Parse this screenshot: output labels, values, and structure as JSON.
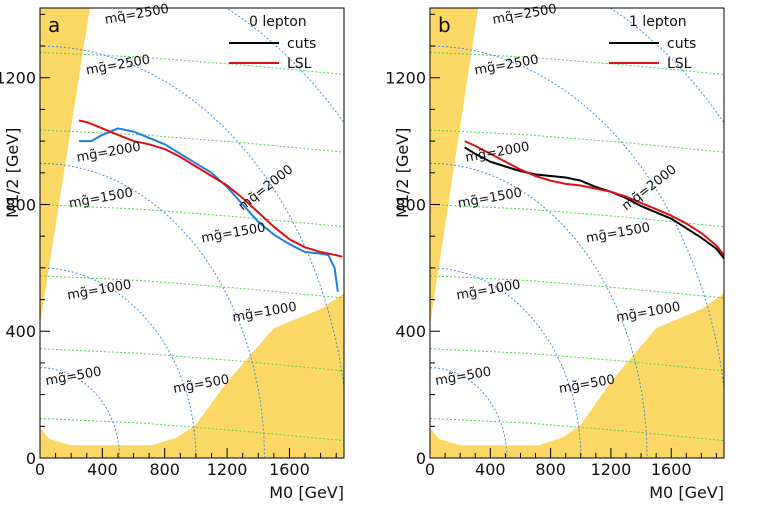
{
  "chart_data": [
    {
      "type": "line",
      "panel": "a",
      "title": "0 lepton",
      "xlabel": "M0 [GeV]",
      "ylabel": "M1/2 [GeV]",
      "xlim": [
        0,
        1950
      ],
      "ylim": [
        0,
        1420
      ],
      "xticks": [
        0,
        400,
        800,
        1200,
        1600
      ],
      "yticks": [
        0,
        400,
        800,
        1200
      ],
      "legend": [
        {
          "name": "cuts",
          "color": "#1f7fe0",
          "legend_color": "#000000"
        },
        {
          "name": "LSL",
          "color": "#e01010",
          "legend_color": "#e01010"
        }
      ],
      "series": [
        {
          "name": "cuts",
          "color": "#1f7fe0",
          "x": [
            250,
            330,
            400,
            500,
            600,
            700,
            800,
            900,
            1000,
            1100,
            1200,
            1300,
            1400,
            1500,
            1600,
            1700,
            1800,
            1850,
            1890,
            1910
          ],
          "y": [
            1000,
            1000,
            1020,
            1040,
            1030,
            1010,
            990,
            960,
            930,
            900,
            855,
            800,
            745,
            705,
            675,
            650,
            645,
            640,
            600,
            525
          ]
        },
        {
          "name": "LSL",
          "color": "#e01010",
          "x": [
            250,
            300,
            400,
            500,
            600,
            700,
            800,
            900,
            1000,
            1100,
            1200,
            1300,
            1400,
            1500,
            1600,
            1700,
            1800,
            1900,
            1940
          ],
          "y": [
            1065,
            1060,
            1040,
            1020,
            1000,
            990,
            975,
            950,
            920,
            890,
            860,
            820,
            775,
            730,
            690,
            665,
            650,
            640,
            635
          ]
        }
      ]
    },
    {
      "type": "line",
      "panel": "b",
      "title": "1 lepton",
      "xlabel": "M0 [GeV]",
      "ylabel": "M1/2 [GeV]",
      "xlim": [
        0,
        1950
      ],
      "ylim": [
        0,
        1420
      ],
      "xticks": [
        0,
        400,
        800,
        1200,
        1600
      ],
      "yticks": [
        0,
        400,
        800,
        1200
      ],
      "legend": [
        {
          "name": "cuts",
          "color": "#000000",
          "legend_color": "#000000"
        },
        {
          "name": "LSL",
          "color": "#e01010",
          "legend_color": "#e01010"
        }
      ],
      "series": [
        {
          "name": "cuts",
          "color": "#000000",
          "x": [
            230,
            300,
            400,
            500,
            600,
            700,
            800,
            900,
            1000,
            1100,
            1200,
            1300,
            1400,
            1500,
            1600,
            1700,
            1800,
            1900,
            1950
          ],
          "y": [
            980,
            960,
            935,
            920,
            905,
            895,
            890,
            885,
            875,
            855,
            840,
            820,
            795,
            775,
            755,
            725,
            695,
            660,
            630
          ]
        },
        {
          "name": "LSL",
          "color": "#e01010",
          "x": [
            230,
            300,
            400,
            500,
            600,
            700,
            800,
            900,
            1000,
            1100,
            1200,
            1300,
            1400,
            1500,
            1600,
            1700,
            1800,
            1900,
            1950
          ],
          "y": [
            1000,
            985,
            960,
            935,
            910,
            890,
            875,
            865,
            860,
            850,
            840,
            825,
            805,
            785,
            765,
            740,
            710,
            670,
            640
          ]
        }
      ]
    }
  ],
  "annotations": {
    "squark_labels": [
      "mq̃=2500",
      "mq̃=2000"
    ],
    "gluino_labels": [
      "mg̃=2500",
      "mg̃=2000",
      "mg̃=1500",
      "mg̃=1000",
      "mg̃=500"
    ],
    "gluino_mid_labels": [
      "mg̃=1500",
      "mg̃=1000",
      "mg̃=500"
    ]
  },
  "colors": {
    "excluded_fill": "#fbd765",
    "squark_contour": "#4a8fd9",
    "gluino_contour": "#4fd34f"
  }
}
